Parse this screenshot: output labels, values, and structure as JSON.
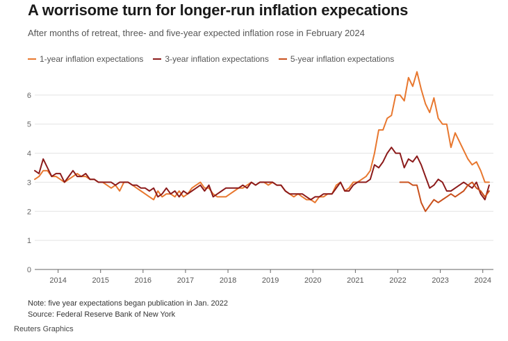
{
  "header": {
    "title": "A worrisome turn for longer-run inflation expecations",
    "subtitle": "After months of retreat, three- and five-year expected inflation rose in February 2024"
  },
  "footer": {
    "note": "Note: five year expectations began publication in Jan. 2022",
    "source": "Source: Federal Reserve Bank of New York",
    "credit": "Reuters Graphics"
  },
  "chart_data": {
    "type": "line",
    "title": "A worrisome turn for longer-run inflation expecations",
    "subtitle": "After months of retreat, three- and five-year expected inflation rose in February 2024",
    "xlabel": "",
    "ylabel": "",
    "xlim": [
      2013.45,
      2024.25
    ],
    "ylim": [
      0,
      7
    ],
    "yticks": [
      0,
      1,
      2,
      3,
      4,
      5,
      6
    ],
    "xticks": [
      2014,
      2015,
      2016,
      2017,
      2018,
      2019,
      2020,
      2021,
      2022,
      2023,
      2024
    ],
    "legend_position": "top-left",
    "gridlines": true,
    "series": [
      {
        "name": "1-year inflation expectations",
        "color": "#e8772e",
        "points": [
          [
            2013.45,
            3.1
          ],
          [
            2013.55,
            3.2
          ],
          [
            2013.65,
            3.4
          ],
          [
            2013.75,
            3.4
          ],
          [
            2013.85,
            3.2
          ],
          [
            2013.95,
            3.2
          ],
          [
            2014.05,
            3.1
          ],
          [
            2014.15,
            3.0
          ],
          [
            2014.25,
            3.1
          ],
          [
            2014.35,
            3.2
          ],
          [
            2014.45,
            3.3
          ],
          [
            2014.55,
            3.2
          ],
          [
            2014.65,
            3.2
          ],
          [
            2014.75,
            3.1
          ],
          [
            2014.85,
            3.1
          ],
          [
            2014.95,
            3.0
          ],
          [
            2015.05,
            3.0
          ],
          [
            2015.15,
            2.9
          ],
          [
            2015.25,
            2.8
          ],
          [
            2015.35,
            2.9
          ],
          [
            2015.45,
            2.7
          ],
          [
            2015.55,
            3.0
          ],
          [
            2015.65,
            3.0
          ],
          [
            2015.75,
            2.9
          ],
          [
            2015.85,
            2.8
          ],
          [
            2015.95,
            2.7
          ],
          [
            2016.05,
            2.6
          ],
          [
            2016.15,
            2.5
          ],
          [
            2016.25,
            2.4
          ],
          [
            2016.35,
            2.7
          ],
          [
            2016.45,
            2.5
          ],
          [
            2016.55,
            2.6
          ],
          [
            2016.65,
            2.6
          ],
          [
            2016.75,
            2.5
          ],
          [
            2016.85,
            2.7
          ],
          [
            2016.95,
            2.5
          ],
          [
            2017.05,
            2.6
          ],
          [
            2017.15,
            2.8
          ],
          [
            2017.25,
            2.9
          ],
          [
            2017.35,
            3.0
          ],
          [
            2017.45,
            2.8
          ],
          [
            2017.55,
            2.8
          ],
          [
            2017.65,
            2.6
          ],
          [
            2017.75,
            2.5
          ],
          [
            2017.85,
            2.5
          ],
          [
            2017.95,
            2.5
          ],
          [
            2018.05,
            2.6
          ],
          [
            2018.15,
            2.7
          ],
          [
            2018.25,
            2.8
          ],
          [
            2018.35,
            2.8
          ],
          [
            2018.45,
            2.9
          ],
          [
            2018.55,
            3.0
          ],
          [
            2018.65,
            2.9
          ],
          [
            2018.75,
            3.0
          ],
          [
            2018.85,
            3.0
          ],
          [
            2018.95,
            2.9
          ],
          [
            2019.05,
            3.0
          ],
          [
            2019.15,
            2.9
          ],
          [
            2019.25,
            2.9
          ],
          [
            2019.35,
            2.7
          ],
          [
            2019.45,
            2.6
          ],
          [
            2019.55,
            2.5
          ],
          [
            2019.65,
            2.6
          ],
          [
            2019.75,
            2.5
          ],
          [
            2019.85,
            2.4
          ],
          [
            2019.95,
            2.4
          ],
          [
            2020.05,
            2.3
          ],
          [
            2020.15,
            2.5
          ],
          [
            2020.25,
            2.5
          ],
          [
            2020.35,
            2.6
          ],
          [
            2020.45,
            2.6
          ],
          [
            2020.55,
            2.9
          ],
          [
            2020.65,
            3.0
          ],
          [
            2020.75,
            2.7
          ],
          [
            2020.85,
            2.8
          ],
          [
            2020.95,
            3.0
          ],
          [
            2021.05,
            3.0
          ],
          [
            2021.15,
            3.1
          ],
          [
            2021.25,
            3.2
          ],
          [
            2021.35,
            3.4
          ],
          [
            2021.45,
            4.0
          ],
          [
            2021.55,
            4.8
          ],
          [
            2021.65,
            4.8
          ],
          [
            2021.75,
            5.2
          ],
          [
            2021.85,
            5.3
          ],
          [
            2021.95,
            6.0
          ],
          [
            2022.05,
            6.0
          ],
          [
            2022.15,
            5.8
          ],
          [
            2022.25,
            6.6
          ],
          [
            2022.35,
            6.3
          ],
          [
            2022.45,
            6.8
          ],
          [
            2022.55,
            6.2
          ],
          [
            2022.65,
            5.7
          ],
          [
            2022.75,
            5.4
          ],
          [
            2022.85,
            5.9
          ],
          [
            2022.95,
            5.2
          ],
          [
            2023.05,
            5.0
          ],
          [
            2023.15,
            5.0
          ],
          [
            2023.25,
            4.2
          ],
          [
            2023.35,
            4.7
          ],
          [
            2023.45,
            4.4
          ],
          [
            2023.55,
            4.1
          ],
          [
            2023.65,
            3.8
          ],
          [
            2023.75,
            3.6
          ],
          [
            2023.85,
            3.7
          ],
          [
            2023.95,
            3.4
          ],
          [
            2024.05,
            3.0
          ],
          [
            2024.15,
            3.0
          ]
        ]
      },
      {
        "name": "3-year inflation expectations",
        "color": "#8b1a1a",
        "points": [
          [
            2013.45,
            3.4
          ],
          [
            2013.55,
            3.3
          ],
          [
            2013.65,
            3.8
          ],
          [
            2013.75,
            3.5
          ],
          [
            2013.85,
            3.2
          ],
          [
            2013.95,
            3.3
          ],
          [
            2014.05,
            3.3
          ],
          [
            2014.15,
            3.0
          ],
          [
            2014.25,
            3.2
          ],
          [
            2014.35,
            3.4
          ],
          [
            2014.45,
            3.2
          ],
          [
            2014.55,
            3.2
          ],
          [
            2014.65,
            3.3
          ],
          [
            2014.75,
            3.1
          ],
          [
            2014.85,
            3.1
          ],
          [
            2014.95,
            3.0
          ],
          [
            2015.05,
            3.0
          ],
          [
            2015.15,
            3.0
          ],
          [
            2015.25,
            3.0
          ],
          [
            2015.35,
            2.9
          ],
          [
            2015.45,
            3.0
          ],
          [
            2015.55,
            3.0
          ],
          [
            2015.65,
            3.0
          ],
          [
            2015.75,
            2.9
          ],
          [
            2015.85,
            2.9
          ],
          [
            2015.95,
            2.8
          ],
          [
            2016.05,
            2.8
          ],
          [
            2016.15,
            2.7
          ],
          [
            2016.25,
            2.8
          ],
          [
            2016.35,
            2.5
          ],
          [
            2016.45,
            2.6
          ],
          [
            2016.55,
            2.8
          ],
          [
            2016.65,
            2.6
          ],
          [
            2016.75,
            2.7
          ],
          [
            2016.85,
            2.5
          ],
          [
            2016.95,
            2.7
          ],
          [
            2017.05,
            2.6
          ],
          [
            2017.15,
            2.7
          ],
          [
            2017.25,
            2.8
          ],
          [
            2017.35,
            2.9
          ],
          [
            2017.45,
            2.7
          ],
          [
            2017.55,
            2.9
          ],
          [
            2017.65,
            2.5
          ],
          [
            2017.75,
            2.6
          ],
          [
            2017.85,
            2.7
          ],
          [
            2017.95,
            2.8
          ],
          [
            2018.05,
            2.8
          ],
          [
            2018.15,
            2.8
          ],
          [
            2018.25,
            2.8
          ],
          [
            2018.35,
            2.9
          ],
          [
            2018.45,
            2.8
          ],
          [
            2018.55,
            3.0
          ],
          [
            2018.65,
            2.9
          ],
          [
            2018.75,
            3.0
          ],
          [
            2018.85,
            3.0
          ],
          [
            2018.95,
            3.0
          ],
          [
            2019.05,
            3.0
          ],
          [
            2019.15,
            2.9
          ],
          [
            2019.25,
            2.9
          ],
          [
            2019.35,
            2.7
          ],
          [
            2019.45,
            2.6
          ],
          [
            2019.55,
            2.6
          ],
          [
            2019.65,
            2.6
          ],
          [
            2019.75,
            2.6
          ],
          [
            2019.85,
            2.5
          ],
          [
            2019.95,
            2.4
          ],
          [
            2020.05,
            2.5
          ],
          [
            2020.15,
            2.5
          ],
          [
            2020.25,
            2.6
          ],
          [
            2020.35,
            2.6
          ],
          [
            2020.45,
            2.6
          ],
          [
            2020.55,
            2.8
          ],
          [
            2020.65,
            3.0
          ],
          [
            2020.75,
            2.7
          ],
          [
            2020.85,
            2.7
          ],
          [
            2020.95,
            2.9
          ],
          [
            2021.05,
            3.0
          ],
          [
            2021.15,
            3.0
          ],
          [
            2021.25,
            3.0
          ],
          [
            2021.35,
            3.1
          ],
          [
            2021.45,
            3.6
          ],
          [
            2021.55,
            3.5
          ],
          [
            2021.65,
            3.7
          ],
          [
            2021.75,
            4.0
          ],
          [
            2021.85,
            4.2
          ],
          [
            2021.95,
            4.0
          ],
          [
            2022.05,
            4.0
          ],
          [
            2022.15,
            3.5
          ],
          [
            2022.25,
            3.8
          ],
          [
            2022.35,
            3.7
          ],
          [
            2022.45,
            3.9
          ],
          [
            2022.55,
            3.6
          ],
          [
            2022.65,
            3.2
          ],
          [
            2022.75,
            2.8
          ],
          [
            2022.85,
            2.9
          ],
          [
            2022.95,
            3.1
          ],
          [
            2023.05,
            3.0
          ],
          [
            2023.15,
            2.7
          ],
          [
            2023.25,
            2.7
          ],
          [
            2023.35,
            2.8
          ],
          [
            2023.45,
            2.9
          ],
          [
            2023.55,
            3.0
          ],
          [
            2023.65,
            2.9
          ],
          [
            2023.75,
            2.8
          ],
          [
            2023.85,
            3.0
          ],
          [
            2023.95,
            2.6
          ],
          [
            2024.05,
            2.4
          ],
          [
            2024.15,
            2.9
          ]
        ]
      },
      {
        "name": "5-year inflation expectations",
        "color": "#c9501c",
        "points": [
          [
            2022.05,
            3.0
          ],
          [
            2022.15,
            3.0
          ],
          [
            2022.25,
            3.0
          ],
          [
            2022.35,
            2.9
          ],
          [
            2022.45,
            2.9
          ],
          [
            2022.55,
            2.3
          ],
          [
            2022.65,
            2.0
          ],
          [
            2022.75,
            2.2
          ],
          [
            2022.85,
            2.4
          ],
          [
            2022.95,
            2.3
          ],
          [
            2023.05,
            2.4
          ],
          [
            2023.15,
            2.5
          ],
          [
            2023.25,
            2.6
          ],
          [
            2023.35,
            2.5
          ],
          [
            2023.45,
            2.6
          ],
          [
            2023.55,
            2.7
          ],
          [
            2023.65,
            2.9
          ],
          [
            2023.75,
            3.0
          ],
          [
            2023.85,
            2.8
          ],
          [
            2023.95,
            2.7
          ],
          [
            2024.05,
            2.5
          ],
          [
            2024.15,
            2.7
          ]
        ]
      }
    ]
  }
}
